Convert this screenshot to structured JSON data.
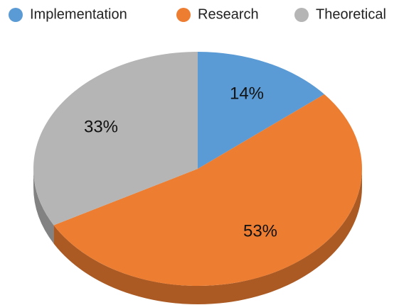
{
  "chart_data": {
    "type": "pie",
    "categories": [
      "Implementation",
      "Research",
      "Theoretical"
    ],
    "values": [
      14,
      53,
      33
    ],
    "value_labels": [
      "14%",
      "53%",
      "33%"
    ],
    "colors": [
      "#5b9bd5",
      "#ed7d31",
      "#b5b5b5"
    ]
  }
}
